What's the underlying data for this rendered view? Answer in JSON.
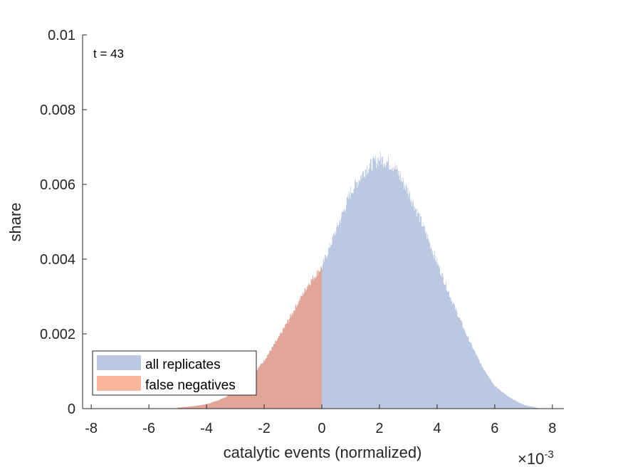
{
  "chart_data": {
    "type": "histogram",
    "xlabel": "catalytic events (normalized)",
    "ylabel": "share",
    "x_exponent_label": "×10",
    "x_exponent_power": "-3",
    "annotation": "t = 43",
    "xlim": [
      -8.3,
      8.4
    ],
    "ylim": [
      0,
      0.01
    ],
    "x_ticks": [
      -8,
      -6,
      -4,
      -2,
      0,
      2,
      4,
      6,
      8
    ],
    "x_tick_labels": [
      "-8",
      "-6",
      "-4",
      "-2",
      "0",
      "2",
      "4",
      "6",
      "8"
    ],
    "y_ticks": [
      0,
      0.002,
      0.004,
      0.006,
      0.008,
      0.01
    ],
    "y_tick_labels": [
      "0",
      "0.002",
      "0.004",
      "0.006",
      "0.008",
      "0.01"
    ],
    "grid": false,
    "legend_position": "bottom-left",
    "series": [
      {
        "name": "all replicates",
        "color": "#bac8e2",
        "x": [
          -5.0,
          -4.5,
          -4.0,
          -3.5,
          -3.0,
          -2.5,
          -2.0,
          -1.5,
          -1.0,
          -0.5,
          0.0,
          0.5,
          1.0,
          1.5,
          2.0,
          2.5,
          3.0,
          3.5,
          4.0,
          4.5,
          5.0,
          5.5,
          6.0,
          6.5,
          7.0,
          7.5
        ],
        "values": [
          3e-05,
          6e-05,
          0.00012,
          0.00025,
          0.00045,
          0.0008,
          0.0013,
          0.0019,
          0.0026,
          0.0033,
          0.0038,
          0.0048,
          0.0058,
          0.0064,
          0.0067,
          0.0065,
          0.0058,
          0.0049,
          0.0039,
          0.0029,
          0.002,
          0.0012,
          0.0006,
          0.0003,
          0.0001,
          2e-05
        ]
      },
      {
        "name": "false negatives",
        "color": "#fbb79e",
        "x": [
          -5.0,
          -4.5,
          -4.0,
          -3.5,
          -3.0,
          -2.5,
          -2.0,
          -1.5,
          -1.0,
          -0.5,
          0.0
        ],
        "values": [
          3e-05,
          6e-05,
          0.00012,
          0.00025,
          0.00045,
          0.0008,
          0.0013,
          0.0019,
          0.0026,
          0.0033,
          0.0038
        ]
      }
    ],
    "overlap_color": "#e2a698"
  }
}
